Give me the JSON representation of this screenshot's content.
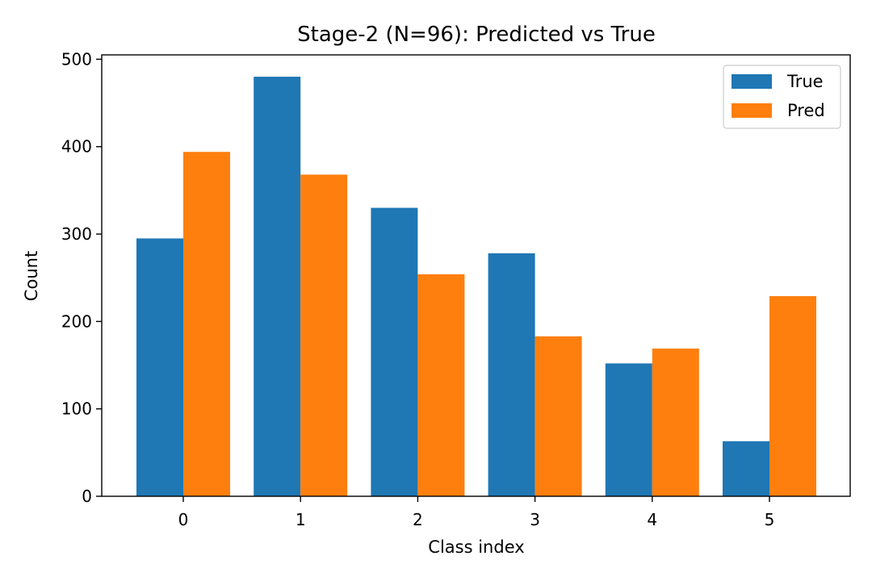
{
  "chart_data": {
    "type": "bar",
    "title": "Stage-2 (N=96): Predicted vs True",
    "xlabel": "Class index",
    "ylabel": "Count",
    "categories": [
      "0",
      "1",
      "2",
      "3",
      "4",
      "5"
    ],
    "series": [
      {
        "name": "True",
        "color": "#1f77b4",
        "values": [
          295,
          480,
          330,
          278,
          152,
          63
        ]
      },
      {
        "name": "Pred",
        "color": "#ff7f0e",
        "values": [
          394,
          368,
          254,
          183,
          169,
          229
        ]
      }
    ],
    "yticks": [
      0,
      100,
      200,
      300,
      400,
      500
    ],
    "ylim": [
      0,
      505
    ],
    "grid": false,
    "legend_position": "top-right"
  }
}
